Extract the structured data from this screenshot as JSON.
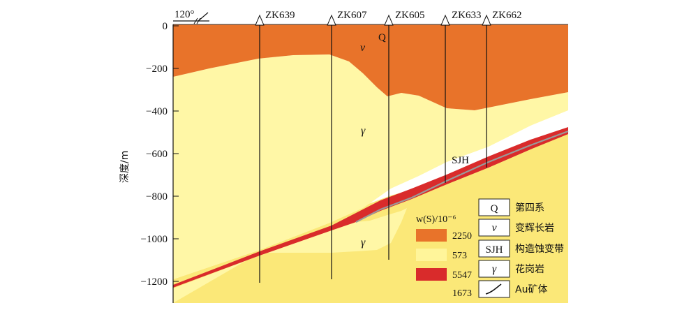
{
  "orientation": "120°",
  "axis": {
    "ylabel": "深度/m",
    "ticks": [
      "0",
      "−200",
      "−400",
      "−600",
      "−800",
      "−1000",
      "−1200"
    ]
  },
  "boreholes": [
    "ZK639",
    "ZK607",
    "ZK605",
    "ZK633",
    "ZK662"
  ],
  "section_labels": {
    "q": "Q",
    "v": "v",
    "gamma_upper": "γ",
    "sjh": "SJH",
    "gamma_lower": "γ"
  },
  "s_legend": {
    "title": "w(S)/10⁻⁶",
    "items": [
      {
        "value": "2250",
        "color": "#E8732A"
      },
      {
        "value": "573",
        "color": "#FFF59A"
      },
      {
        "value": "5547",
        "color": "#D92B2B"
      },
      {
        "value": "1673",
        "color": "#FBE878"
      }
    ]
  },
  "rock_legend": {
    "items": [
      {
        "symbol": "Q",
        "label": "第四系"
      },
      {
        "symbol": "v",
        "label": "变辉长岩"
      },
      {
        "symbol": "SJH",
        "label": "构造蚀变带"
      },
      {
        "symbol": "γ",
        "label": "花岗岩"
      },
      {
        "symbol": "ore-body-icon",
        "label": "Au矿体"
      }
    ]
  }
}
